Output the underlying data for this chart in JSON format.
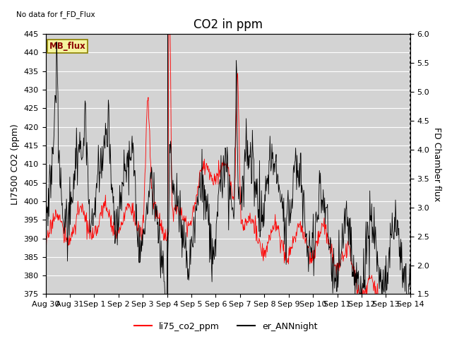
{
  "title": "CO2 in ppm",
  "ylabel_left": "LI7500 CO2 (ppm)",
  "ylabel_right": "FD Chamber flux",
  "ylim_left": [
    375,
    445
  ],
  "ylim_right": [
    1.5,
    6.0
  ],
  "yticks_left": [
    375,
    380,
    385,
    390,
    395,
    400,
    405,
    410,
    415,
    420,
    425,
    430,
    435,
    440,
    445
  ],
  "yticks_right": [
    1.5,
    2.0,
    2.5,
    3.0,
    3.5,
    4.0,
    4.5,
    5.0,
    5.5,
    6.0
  ],
  "no_data_text": "No data for f_FD_Flux",
  "mb_flux_label": "MB_flux",
  "legend_entries": [
    "li75_co2_ppm",
    "er_ANNnight"
  ],
  "line_colors": [
    "red",
    "black"
  ],
  "background_color": "#d3d3d3",
  "title_fontsize": 12,
  "label_fontsize": 9,
  "tick_fontsize": 8,
  "xtick_labels": [
    "Aug 30",
    "Aug 31",
    "Sep 1",
    "Sep 2",
    "Sep 3",
    "Sep 4",
    "Sep 5",
    "Sep 6",
    "Sep 7",
    "Sep 8",
    "Sep 9",
    "Sep 10",
    "Sep 11",
    "Sep 12",
    "Sep 13",
    "Sep 14"
  ],
  "vline_pos": 5.0
}
